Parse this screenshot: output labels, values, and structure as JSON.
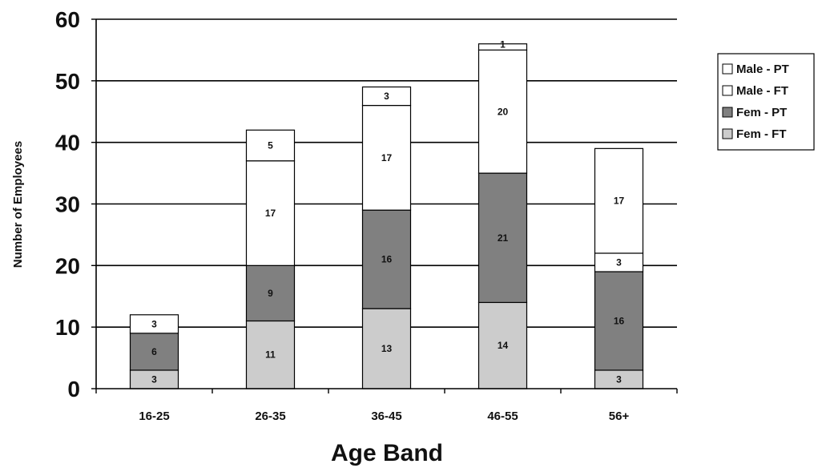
{
  "chart_data": {
    "type": "bar",
    "stacked": true,
    "categories": [
      "16-25",
      "26-35",
      "36-45",
      "46-55",
      "56+"
    ],
    "series": [
      {
        "name": "Fem - FT",
        "values": [
          3,
          11,
          13,
          14,
          3
        ],
        "color": "#cccccc"
      },
      {
        "name": "Fem - PT",
        "values": [
          6,
          9,
          16,
          21,
          16
        ],
        "color": "#808080"
      },
      {
        "name": "Male - FT",
        "values": [
          0,
          17,
          17,
          20,
          3
        ],
        "color": "#ffffff"
      },
      {
        "name": "Male - PT",
        "values": [
          3,
          5,
          3,
          1,
          17
        ],
        "color": "#ffffff"
      }
    ],
    "legend_order": [
      "Male - PT",
      "Male - FT",
      "Fem - PT",
      "Fem - FT"
    ],
    "xlabel": "Age Band",
    "ylabel": "Number of Employees",
    "ylim": [
      0,
      60
    ],
    "yticks": [
      0,
      10,
      20,
      30,
      40,
      50,
      60
    ],
    "grid": true,
    "legend_position": "right"
  }
}
